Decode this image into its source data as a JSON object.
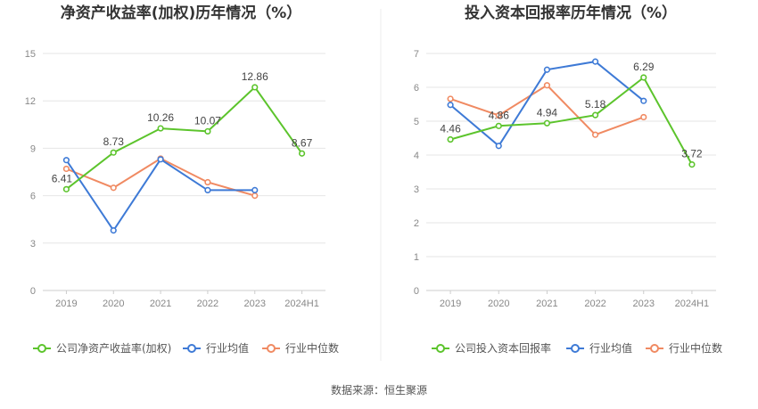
{
  "source_label": "数据来源：恒生聚源",
  "chart_data": [
    {
      "type": "line",
      "title": "净资产收益率(加权)历年情况（%）",
      "categories": [
        "2019",
        "2020",
        "2021",
        "2022",
        "2023",
        "2024H1"
      ],
      "yticks": [
        "0",
        "3",
        "6",
        "9",
        "12",
        "15"
      ],
      "ylim": [
        0,
        15
      ],
      "grid": true,
      "legend_position": "bottom-left",
      "series": [
        {
          "name": "公司净资产收益率(加权)",
          "color": "#5cc42c",
          "values": [
            6.41,
            8.73,
            10.26,
            10.07,
            12.86,
            8.67
          ],
          "labels": [
            "6.41",
            "8.73",
            "10.26",
            "10.07",
            "12.86",
            "8.67"
          ]
        },
        {
          "name": "行业均值",
          "color": "#3e7ad6",
          "values": [
            8.25,
            3.8,
            8.3,
            6.35,
            6.35,
            null
          ]
        },
        {
          "name": "行业中位数",
          "color": "#f08a62",
          "values": [
            7.7,
            6.5,
            8.35,
            6.85,
            6.0,
            null
          ]
        }
      ]
    },
    {
      "type": "line",
      "title": "投入资本回报率历年情况（%）",
      "categories": [
        "2019",
        "2020",
        "2021",
        "2022",
        "2023",
        "2024H1"
      ],
      "yticks": [
        "0",
        "1",
        "2",
        "3",
        "4",
        "5",
        "6",
        "7"
      ],
      "ylim": [
        0,
        7
      ],
      "grid": true,
      "legend_position": "bottom-left",
      "series": [
        {
          "name": "公司投入资本回报率",
          "color": "#5cc42c",
          "values": [
            4.46,
            4.86,
            4.94,
            5.18,
            6.29,
            3.72
          ],
          "labels": [
            "4.46",
            "4.86",
            "4.94",
            "5.18",
            "6.29",
            "3.72"
          ]
        },
        {
          "name": "行业均值",
          "color": "#3e7ad6",
          "values": [
            5.48,
            4.27,
            6.52,
            6.76,
            5.6,
            null
          ]
        },
        {
          "name": "行业中位数",
          "color": "#f08a62",
          "values": [
            5.66,
            5.17,
            6.06,
            4.6,
            5.12,
            null
          ]
        }
      ]
    }
  ]
}
